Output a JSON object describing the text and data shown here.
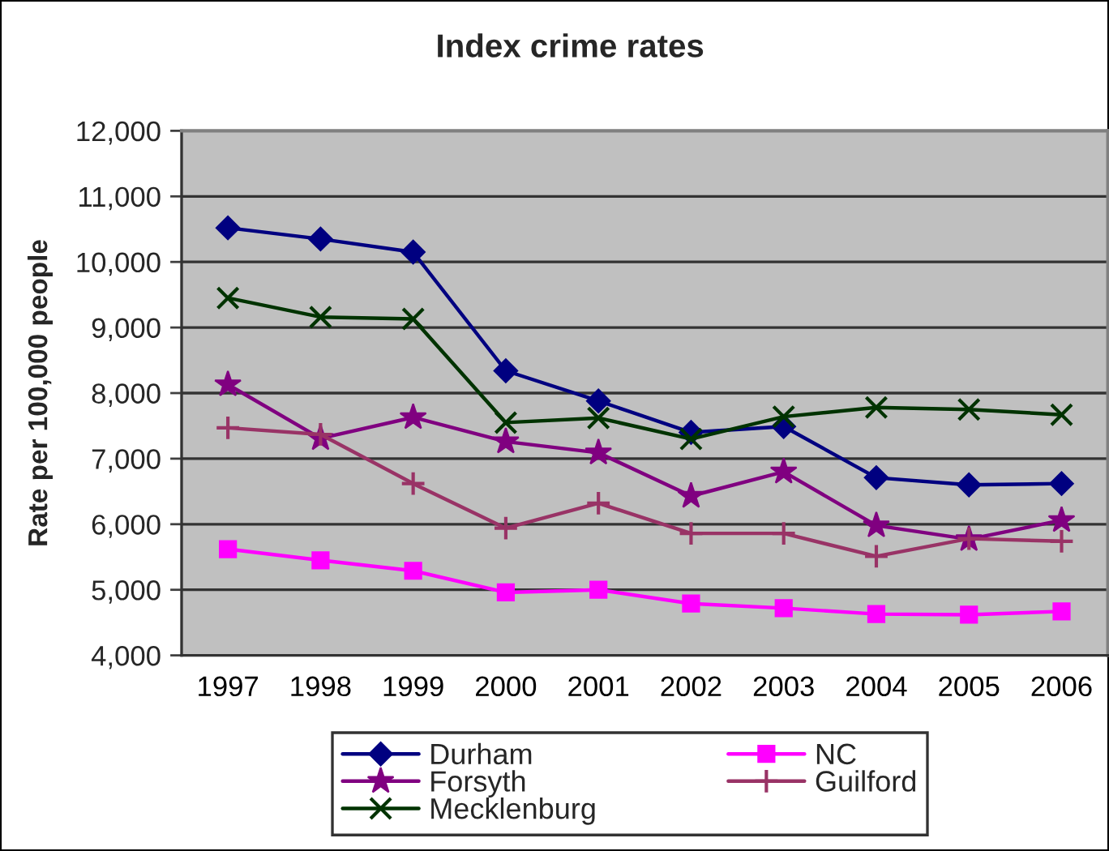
{
  "chart_data": {
    "type": "line",
    "title": "Index crime rates",
    "ylabel": "Rate per 100,000 people",
    "categories": [
      "1997",
      "1998",
      "1999",
      "2000",
      "2001",
      "2002",
      "2003",
      "2004",
      "2005",
      "2006"
    ],
    "series": [
      {
        "name": "Durham",
        "color": "#000080",
        "marker": "diamond",
        "values": [
          10520,
          10350,
          10150,
          8340,
          7880,
          7400,
          7490,
          6710,
          6600,
          6620
        ]
      },
      {
        "name": "NC",
        "color": "#ff00ff",
        "marker": "square",
        "values": [
          5620,
          5450,
          5290,
          4960,
          5000,
          4790,
          4720,
          4630,
          4620,
          4670
        ]
      },
      {
        "name": "Forsyth",
        "color": "#800080",
        "marker": "star",
        "values": [
          8130,
          7310,
          7630,
          7260,
          7090,
          6430,
          6800,
          5980,
          5770,
          6060
        ]
      },
      {
        "name": "Guilford",
        "color": "#993366",
        "marker": "plus",
        "values": [
          7470,
          7370,
          6620,
          5940,
          6320,
          5860,
          5860,
          5510,
          5780,
          5740
        ]
      },
      {
        "name": "Mecklenburg",
        "color": "#003300",
        "marker": "cross",
        "values": [
          9450,
          9160,
          9130,
          7550,
          7620,
          7300,
          7640,
          7780,
          7750,
          7670
        ]
      }
    ],
    "ylim": [
      4000,
      12000
    ],
    "yticks": [
      {
        "value": 4000,
        "label": "4,000"
      },
      {
        "value": 5000,
        "label": "5,000"
      },
      {
        "value": 6000,
        "label": "6,000"
      },
      {
        "value": 7000,
        "label": "7,000"
      },
      {
        "value": 8000,
        "label": "8,000"
      },
      {
        "value": 9000,
        "label": "9,000"
      },
      {
        "value": 10000,
        "label": "10,000"
      },
      {
        "value": 11000,
        "label": "11,000"
      },
      {
        "value": 12000,
        "label": "12,000"
      }
    ],
    "grid": "y",
    "legend": "bottom"
  }
}
